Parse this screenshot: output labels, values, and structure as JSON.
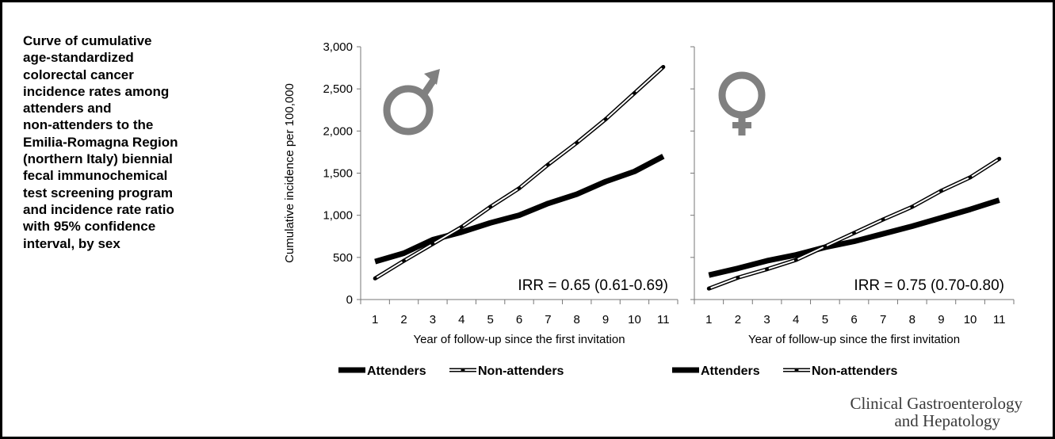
{
  "caption_lines": [
    "Curve of cumulative",
    "age-standardized",
    "colorectal cancer",
    "incidence rates among",
    "attenders and",
    "non-attenders to the",
    "Emilia-Romagna Region",
    "(northern Italy) biennial",
    "fecal immunochemical",
    "test screening program",
    "and incidence rate ratio",
    "with 95% confidence",
    "interval, by sex"
  ],
  "journal": {
    "line1": "Clinical Gastroenterology",
    "line2": "and Hepatology"
  },
  "colors": {
    "attenders": "#000000",
    "non_attenders": "#000000",
    "symbol": "#808080"
  },
  "chart_data": [
    {
      "type": "line",
      "sex": "male",
      "symbol_icon": "male-symbol-icon",
      "x": [
        1,
        2,
        3,
        4,
        5,
        6,
        7,
        8,
        9,
        10,
        11
      ],
      "ylim": [
        0,
        3000
      ],
      "yticks": [
        0,
        500,
        1000,
        1500,
        2000,
        2500,
        3000
      ],
      "ytick_labels": [
        "0",
        "500",
        "1,000",
        "1,500",
        "2,000",
        "2,500",
        "3,000"
      ],
      "ylabel": "Cumulative incidence per 100,000",
      "xlabel": "Year of follow-up since the first invitation",
      "annotation": "IRR = 0.65 (0.61-0.69)",
      "legend_position": "bottom",
      "series": [
        {
          "name": "Attenders",
          "style": "thick",
          "values": [
            450,
            550,
            710,
            800,
            910,
            1000,
            1140,
            1250,
            1400,
            1520,
            1700
          ]
        },
        {
          "name": "Non-attenders",
          "style": "double",
          "values": [
            250,
            460,
            660,
            860,
            1100,
            1320,
            1600,
            1860,
            2140,
            2450,
            2760
          ]
        }
      ]
    },
    {
      "type": "line",
      "sex": "female",
      "symbol_icon": "female-symbol-icon",
      "x": [
        1,
        2,
        3,
        4,
        5,
        6,
        7,
        8,
        9,
        10,
        11
      ],
      "ylim": [
        0,
        3000
      ],
      "ylabel": "",
      "xlabel": "Year of follow-up since the first invitation",
      "annotation": "IRR = 0.75 (0.70-0.80)",
      "legend_position": "bottom",
      "series": [
        {
          "name": "Attenders",
          "style": "thick",
          "values": [
            290,
            370,
            460,
            530,
            620,
            690,
            780,
            870,
            970,
            1070,
            1180
          ]
        },
        {
          "name": "Non-attenders",
          "style": "double",
          "values": [
            130,
            260,
            360,
            470,
            630,
            790,
            950,
            1100,
            1290,
            1450,
            1670
          ]
        }
      ]
    }
  ]
}
